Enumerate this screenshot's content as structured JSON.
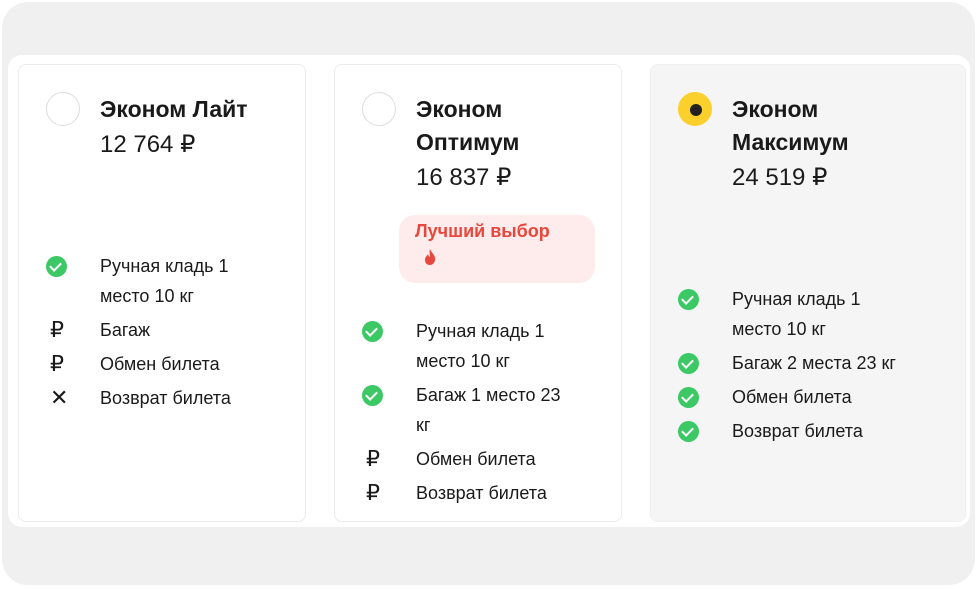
{
  "tariffs": [
    {
      "name": "Эконом Лайт",
      "price": "12 764 ₽",
      "selected": false,
      "features": [
        {
          "icon": "check-icon",
          "text": "Ручная кладь 1 место 10 кг"
        },
        {
          "icon": "ruble-icon",
          "text": "Багаж"
        },
        {
          "icon": "ruble-icon",
          "text": "Обмен билета"
        },
        {
          "icon": "cross-icon",
          "text": "Возврат билета"
        }
      ]
    },
    {
      "name": "Эконом Оптимум",
      "price": "16 837 ₽",
      "selected": false,
      "badge": "Лучший выбор",
      "features": [
        {
          "icon": "check-icon",
          "text": "Ручная кладь 1 место 10 кг"
        },
        {
          "icon": "check-icon",
          "text": "Багаж 1 место 23 кг"
        },
        {
          "icon": "ruble-icon",
          "text": "Обмен билета"
        },
        {
          "icon": "ruble-icon",
          "text": "Возврат билета"
        }
      ]
    },
    {
      "name": "Эконом Максимум",
      "price": "24 519 ₽",
      "selected": true,
      "features": [
        {
          "icon": "check-icon",
          "text": "Ручная кладь 1 место 10 кг"
        },
        {
          "icon": "check-icon",
          "text": "Багаж 2 места 23 кг"
        },
        {
          "icon": "check-icon",
          "text": "Обмен билета"
        },
        {
          "icon": "check-icon",
          "text": "Возврат билета"
        }
      ]
    }
  ],
  "colors": {
    "accent": "#fcd02c",
    "check": "#3cc864",
    "badge_text": "#e8473d",
    "badge_bg": "#fdeceb"
  }
}
